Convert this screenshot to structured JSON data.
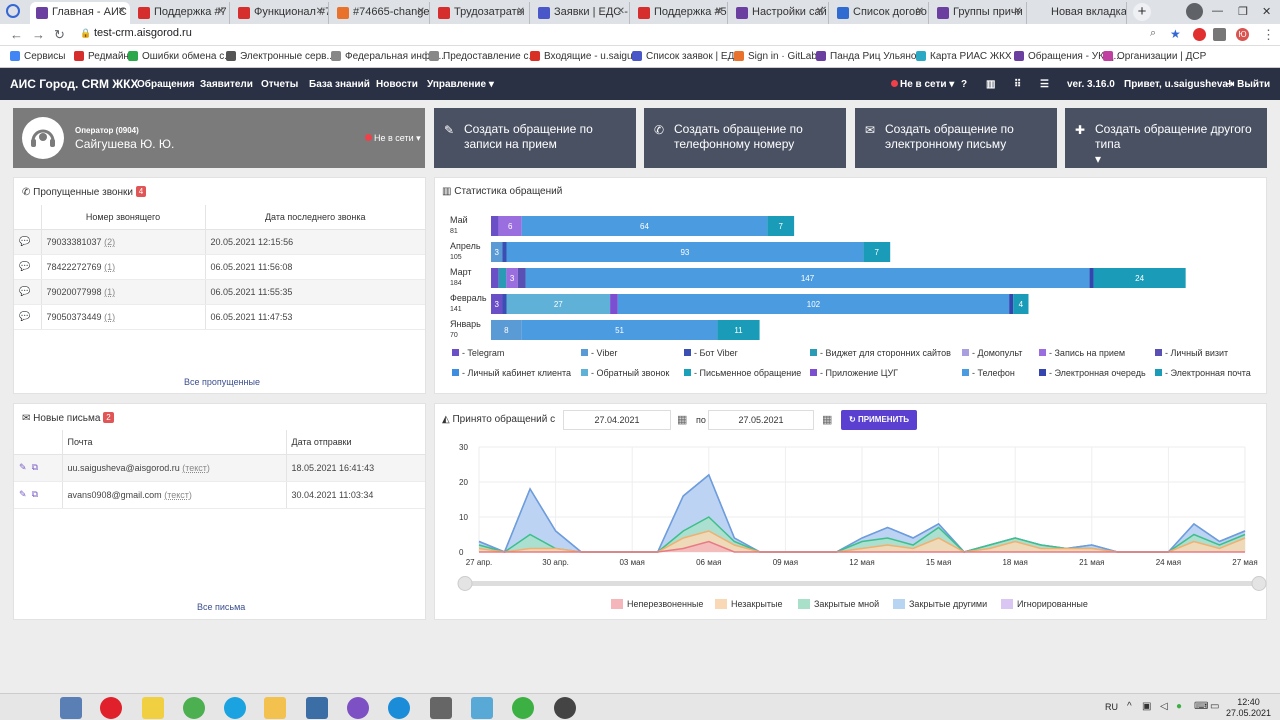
{
  "browser": {
    "tabs": [
      {
        "title": "Главная - АИС",
        "active": true,
        "color": "#6b3fa0"
      },
      {
        "title": "Поддержка #7",
        "active": false,
        "color": "#d62d2d"
      },
      {
        "title": "Функционал #7",
        "active": false,
        "color": "#d62d2d"
      },
      {
        "title": "#74665-change",
        "active": false,
        "color": "#e8722b"
      },
      {
        "title": "Трудозатраты",
        "active": false,
        "color": "#d62d2d"
      },
      {
        "title": "Заявки | ЕДС -",
        "active": false,
        "color": "#4a57c9"
      },
      {
        "title": "Поддержка #5",
        "active": false,
        "color": "#d62d2d"
      },
      {
        "title": "Настройки сай",
        "active": false,
        "color": "#6b3fa0"
      },
      {
        "title": "Список догово",
        "active": false,
        "color": "#2f6bd1"
      },
      {
        "title": "Группы причи",
        "active": false,
        "color": "#6b3fa0"
      },
      {
        "title": "Новая вкладка",
        "active": false,
        "color": "#dee1e6"
      }
    ],
    "url": "test-crm.aisgorod.ru",
    "bookmarks": [
      {
        "label": "Сервисы",
        "color": "#4285f4"
      },
      {
        "label": "Редмайн",
        "color": "#d62d2d"
      },
      {
        "label": "Ошибки обмена с...",
        "color": "#2aa84a"
      },
      {
        "label": "Электронные серв...",
        "color": "#555555"
      },
      {
        "label": "Федеральная инфо...",
        "color": "#888888"
      },
      {
        "label": "Предоставление с...",
        "color": "#888888"
      },
      {
        "label": "Входящие - u.saigu...",
        "color": "#d93025"
      },
      {
        "label": "Список заявок | ЕД...",
        "color": "#4a57c9"
      },
      {
        "label": "Sign in · GitLab",
        "color": "#e8722b"
      },
      {
        "label": "Панда Риц Ульяно...",
        "color": "#6b3fa0"
      },
      {
        "label": "Карта РИАС ЖКХ",
        "color": "#2aa8c4"
      },
      {
        "label": "Обращения - УК Д...",
        "color": "#6b3fa0"
      },
      {
        "label": "Организации | ДСР",
        "color": "#c03fa0"
      }
    ]
  },
  "app": {
    "brand": "АИС Город. CRM ЖКХ",
    "menu": [
      "Обращения",
      "Заявители",
      "Отчеты",
      "База знаний",
      "Новости",
      "Управление"
    ],
    "status": "Не в сети",
    "version": "ver. 3.16.0",
    "greeting": "Привет, u.saigusheva!",
    "logout": "Выйти"
  },
  "operator": {
    "label": "Оператор (0904)",
    "name": "Сайгушева Ю. Ю.",
    "status": "Не в сети"
  },
  "actions": [
    {
      "label": "Создать обращение по записи на прием",
      "icon": "edit-icon"
    },
    {
      "label": "Создать обращение по телефонному номеру",
      "icon": "phone-icon"
    },
    {
      "label": "Создать обращение по электронному письму",
      "icon": "envelope-icon"
    },
    {
      "label": "Создать обращение другого типа",
      "icon": "plus-icon"
    }
  ],
  "missed_calls": {
    "title": "Пропущенные звонки",
    "count": "4",
    "col_number": "Номер звонящего",
    "col_date": "Дата последнего звонка",
    "rows": [
      {
        "number": "79033381037",
        "times": "(2)",
        "date": "20.05.2021 12:15:56"
      },
      {
        "number": "78422272769",
        "times": "(1)",
        "date": "06.05.2021 11:56:08"
      },
      {
        "number": "79020077998",
        "times": "(1)",
        "date": "06.05.2021 11:55:35"
      },
      {
        "number": "79050373449",
        "times": "(1)",
        "date": "06.05.2021 11:47:53"
      }
    ],
    "all_link": "Все пропущенные"
  },
  "letters": {
    "title": "Новые письма",
    "count": "2",
    "col_mail": "Почта",
    "col_date": "Дата отправки",
    "rows": [
      {
        "email": "uu.saigusheva@aisgorod.ru",
        "text_link": "(текст)",
        "date": "18.05.2021 16:41:43"
      },
      {
        "email": "avans0908@gmail.com",
        "text_link": "(текст)",
        "date": "30.04.2021 11:03:34"
      }
    ],
    "all_link": "Все письма"
  },
  "stats": {
    "title": "Статистика обращений",
    "legend": [
      {
        "label": "- Telegram",
        "color": "#6a4fc7"
      },
      {
        "label": "- Viber",
        "color": "#5b9bd5"
      },
      {
        "label": "- Бот Viber",
        "color": "#3b4fb3"
      },
      {
        "label": "- Виджет для сторонних сайтов",
        "color": "#2a9bb5"
      },
      {
        "label": "- Домопульт",
        "color": "#a99ee0"
      },
      {
        "label": "- Запись на прием",
        "color": "#9b6ee0"
      },
      {
        "label": "- Личный визит",
        "color": "#5a4fb3"
      },
      {
        "label": "- Личный кабинет клиента",
        "color": "#3d8de0"
      },
      {
        "label": "- Обратный звонок",
        "color": "#5fb1d8"
      },
      {
        "label": "- Письменное обращение",
        "color": "#1aa0b8"
      },
      {
        "label": "- Приложение ЦУГ",
        "color": "#7c4fd0"
      },
      {
        "label": "- Телефон",
        "color": "#4a9be0"
      },
      {
        "label": "- Электронная очередь",
        "color": "#3545b0"
      },
      {
        "label": "- Электронная почта",
        "color": "#1a9cb8"
      }
    ]
  },
  "accepted": {
    "title": "Принято обращений с",
    "date_from": "27.04.2021",
    "sep": "по",
    "date_to": "27.05.2021",
    "apply": "ПРИМЕНИТЬ",
    "legend": [
      {
        "label": "Неперезвоненные",
        "color": "#f4b6bb"
      },
      {
        "label": "Незакрытые",
        "color": "#f9d8b5"
      },
      {
        "label": "Закрытые мной",
        "color": "#a8e0c9"
      },
      {
        "label": "Закрытые другими",
        "color": "#b7d4f2"
      },
      {
        "label": "Игнорированные",
        "color": "#d9c6f2"
      }
    ]
  },
  "chart_data": [
    {
      "type": "bar",
      "title": "Статистика обращений",
      "orientation": "horizontal-stacked",
      "categories": [
        "Май",
        "Апрель",
        "Март",
        "Февраль",
        "Январь"
      ],
      "totals": [
        "81",
        "105",
        "184",
        "141",
        "70"
      ],
      "series": [
        {
          "name": "Telegram",
          "values": [
            2,
            0,
            2,
            3,
            0
          ]
        },
        {
          "name": "Viber",
          "values": [
            0,
            3,
            0,
            0,
            8
          ]
        },
        {
          "name": "Бот Viber",
          "values": [
            0,
            1,
            0,
            1,
            0
          ]
        },
        {
          "name": "Виджет для сторонних сайтов",
          "values": [
            0,
            0,
            2,
            0,
            0
          ]
        },
        {
          "name": "Запись на прием",
          "values": [
            6,
            0,
            3,
            0,
            0
          ]
        },
        {
          "name": "Личный визит",
          "values": [
            0,
            0,
            2,
            0,
            0
          ]
        },
        {
          "name": "Обратный звонок",
          "values": [
            0,
            0,
            0,
            27,
            0
          ]
        },
        {
          "name": "Приложение ЦУГ",
          "values": [
            0,
            0,
            0,
            2,
            0
          ]
        },
        {
          "name": "Телефон",
          "values": [
            64,
            93,
            147,
            102,
            51
          ]
        },
        {
          "name": "Электронная очередь",
          "values": [
            0,
            0,
            1,
            1,
            0
          ]
        },
        {
          "name": "Электронная почта",
          "values": [
            7,
            7,
            24,
            4,
            11
          ]
        }
      ],
      "xlim": [
        0,
        184
      ]
    },
    {
      "type": "area",
      "title": "Принято обращений",
      "x": [
        "27 апр.",
        "28 апр.",
        "29 апр.",
        "30 апр.",
        "01 мая",
        "02 мая",
        "03 мая",
        "04 мая",
        "05 мая",
        "06 мая",
        "07 мая",
        "08 мая",
        "09 мая",
        "10 мая",
        "11 мая",
        "12 мая",
        "13 мая",
        "14 мая",
        "15 мая",
        "16 мая",
        "17 мая",
        "18 мая",
        "19 мая",
        "20 мая",
        "21 мая",
        "22 мая",
        "23 мая",
        "24 мая",
        "25 мая",
        "26 мая",
        "27 мая"
      ],
      "xticks": [
        "27 апр.",
        "30 апр.",
        "03 мая",
        "06 мая",
        "09 мая",
        "12 мая",
        "15 мая",
        "18 мая",
        "21 мая",
        "24 мая",
        "27 мая"
      ],
      "yticks": [
        "0",
        "10",
        "20",
        "30"
      ],
      "ylim": [
        0,
        30
      ],
      "series": [
        {
          "name": "Неперезвоненные",
          "values": [
            0,
            0,
            0,
            0,
            0,
            0,
            0,
            0,
            1,
            3,
            0,
            0,
            0,
            0,
            0,
            0,
            0,
            0,
            0,
            0,
            0,
            0,
            0,
            0,
            0,
            0,
            0,
            0,
            0,
            0,
            0
          ]
        },
        {
          "name": "Незакрытые",
          "values": [
            1,
            0,
            1,
            1,
            0,
            0,
            0,
            0,
            3,
            3,
            2,
            0,
            0,
            0,
            0,
            1,
            2,
            1,
            4,
            0,
            1,
            3,
            1,
            1,
            1,
            0,
            0,
            0,
            3,
            1,
            4
          ]
        },
        {
          "name": "Закрытые мной",
          "values": [
            1,
            0,
            4,
            0,
            0,
            0,
            0,
            0,
            2,
            4,
            1,
            0,
            0,
            0,
            0,
            2,
            2,
            1,
            3,
            0,
            1,
            1,
            1,
            0,
            0,
            0,
            0,
            0,
            2,
            1,
            1
          ]
        },
        {
          "name": "Закрытые другими",
          "values": [
            1,
            0,
            13,
            5,
            0,
            0,
            0,
            0,
            10,
            12,
            1,
            0,
            0,
            0,
            0,
            1,
            3,
            2,
            1,
            0,
            0,
            0,
            0,
            0,
            1,
            0,
            0,
            0,
            3,
            1,
            1
          ]
        },
        {
          "name": "Игнорированные",
          "values": [
            0,
            0,
            0,
            0,
            0,
            0,
            0,
            0,
            0,
            0,
            0,
            0,
            0,
            0,
            0,
            0,
            0,
            0,
            0,
            0,
            0,
            0,
            0,
            0,
            0,
            0,
            0,
            0,
            0,
            0,
            0
          ]
        }
      ]
    }
  ],
  "taskbar": {
    "lang": "RU",
    "time": "12:40",
    "date": "27.05.2021"
  }
}
